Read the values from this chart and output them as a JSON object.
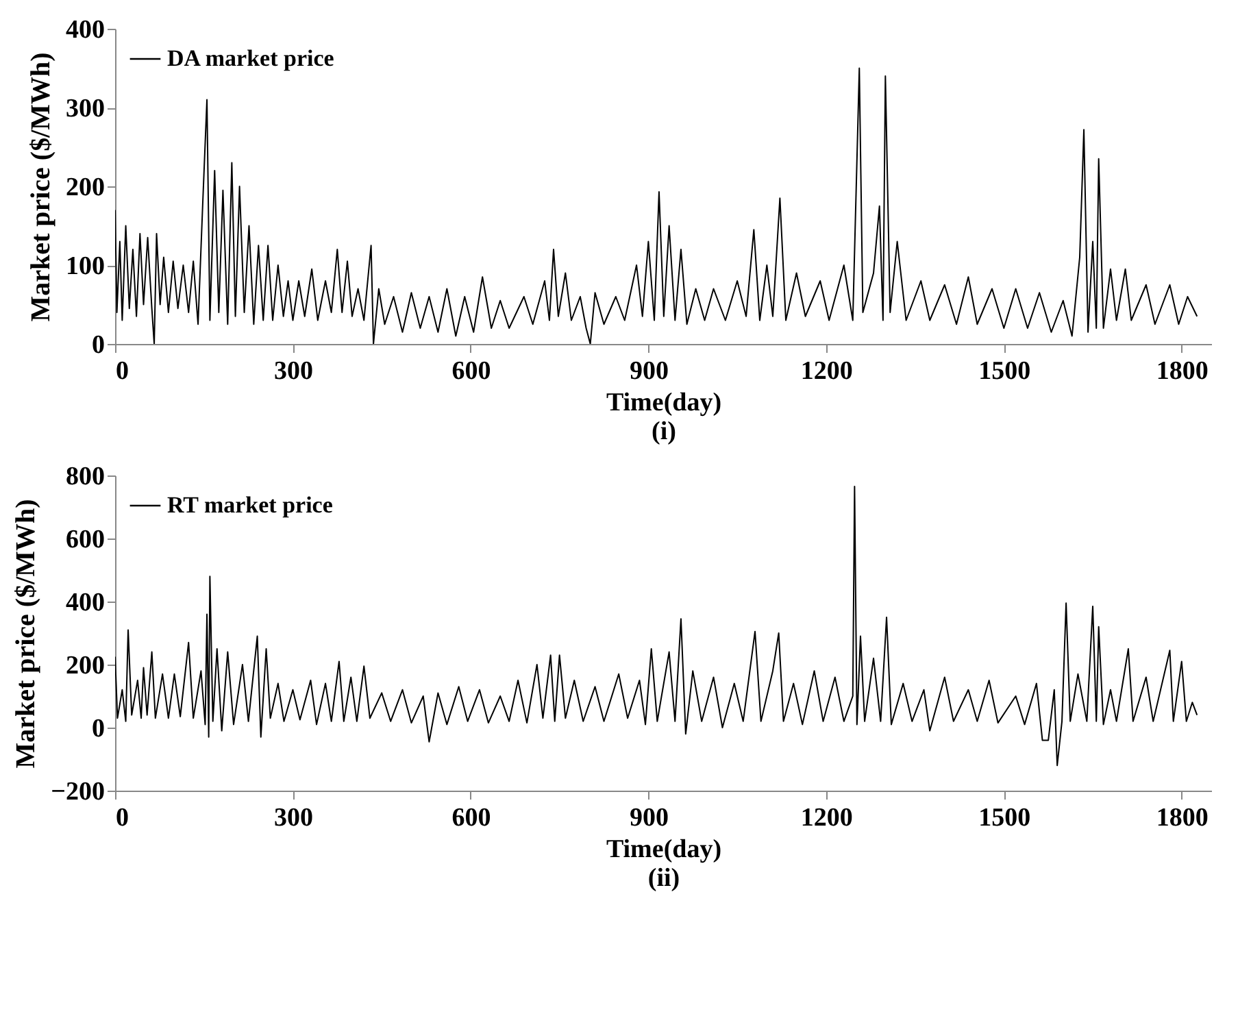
{
  "chart_data": [
    {
      "type": "line",
      "xlabel": "Time(day)",
      "ylabel": "Market price ($/MWh)",
      "annotations": [
        "(i)"
      ],
      "legend": "top left",
      "grid": false,
      "xlim": [
        0,
        1850
      ],
      "xticks": [
        0,
        300,
        600,
        900,
        1200,
        1500,
        1800
      ],
      "ylim": [
        0,
        400
      ],
      "yticks": [
        0,
        100,
        200,
        300,
        400
      ],
      "x": [
        0,
        3,
        8,
        12,
        18,
        24,
        30,
        36,
        42,
        48,
        55,
        62,
        66,
        70,
        76,
        82,
        90,
        98,
        106,
        115,
        124,
        132,
        140,
        148,
        155,
        160,
        168,
        175,
        182,
        190,
        197,
        203,
        210,
        218,
        226,
        234,
        242,
        250,
        258,
        266,
        275,
        284,
        292,
        300,
        310,
        320,
        332,
        342,
        355,
        365,
        375,
        383,
        392,
        400,
        410,
        420,
        432,
        436,
        445,
        455,
        470,
        485,
        500,
        515,
        530,
        545,
        560,
        575,
        590,
        605,
        620,
        635,
        650,
        665,
        690,
        705,
        725,
        733,
        740,
        748,
        760,
        770,
        785,
        795,
        802,
        810,
        825,
        845,
        860,
        880,
        890,
        900,
        910,
        918,
        926,
        935,
        945,
        955,
        965,
        980,
        995,
        1010,
        1030,
        1050,
        1065,
        1078,
        1088,
        1100,
        1110,
        1122,
        1132,
        1150,
        1165,
        1190,
        1205,
        1230,
        1245,
        1256,
        1262,
        1280,
        1290,
        1296,
        1300,
        1308,
        1320,
        1335,
        1360,
        1375,
        1400,
        1420,
        1440,
        1455,
        1480,
        1500,
        1520,
        1540,
        1560,
        1580,
        1600,
        1615,
        1628,
        1635,
        1642,
        1650,
        1656,
        1660,
        1668,
        1680,
        1690,
        1705,
        1715,
        1740,
        1755,
        1780,
        1795,
        1810,
        1826
      ],
      "series": [
        {
          "name": "DA market price",
          "color": "#000000",
          "values": [
            170,
            40,
            130,
            30,
            150,
            45,
            120,
            35,
            140,
            50,
            135,
            45,
            0,
            140,
            50,
            110,
            40,
            105,
            45,
            100,
            40,
            105,
            25,
            180,
            310,
            30,
            220,
            40,
            195,
            25,
            230,
            35,
            200,
            40,
            150,
            25,
            125,
            30,
            125,
            30,
            100,
            35,
            80,
            30,
            80,
            35,
            95,
            30,
            80,
            40,
            120,
            40,
            105,
            35,
            70,
            30,
            125,
            0,
            70,
            25,
            60,
            15,
            65,
            20,
            60,
            15,
            70,
            10,
            60,
            15,
            85,
            20,
            55,
            20,
            60,
            25,
            80,
            30,
            120,
            35,
            90,
            30,
            60,
            20,
            0,
            65,
            25,
            60,
            30,
            100,
            35,
            130,
            30,
            193,
            35,
            150,
            30,
            120,
            25,
            70,
            30,
            70,
            30,
            80,
            35,
            145,
            30,
            100,
            35,
            185,
            30,
            90,
            35,
            80,
            30,
            100,
            30,
            350,
            40,
            90,
            175,
            30,
            340,
            40,
            130,
            30,
            80,
            30,
            75,
            25,
            85,
            25,
            70,
            20,
            70,
            20,
            65,
            15,
            55,
            10,
            110,
            272,
            15,
            130,
            20,
            235,
            20,
            95,
            30,
            95,
            30,
            75,
            25,
            75,
            25,
            60,
            35
          ]
        }
      ]
    },
    {
      "type": "line",
      "xlabel": "Time(day)",
      "ylabel": "Market price ($/MWh)",
      "annotations": [
        "(ii)"
      ],
      "legend": "top left",
      "grid": false,
      "xlim": [
        0,
        1850
      ],
      "xticks": [
        0,
        300,
        600,
        900,
        1200,
        1500,
        1800
      ],
      "ylim": [
        -200,
        800
      ],
      "yticks": [
        -200,
        0,
        200,
        400,
        600,
        800
      ],
      "x": [
        0,
        4,
        12,
        18,
        22,
        28,
        38,
        44,
        48,
        54,
        62,
        68,
        80,
        90,
        100,
        110,
        124,
        132,
        145,
        152,
        155,
        158,
        160,
        165,
        172,
        180,
        190,
        200,
        215,
        225,
        240,
        246,
        255,
        262,
        275,
        285,
        300,
        312,
        330,
        340,
        355,
        365,
        378,
        386,
        398,
        408,
        420,
        430,
        450,
        465,
        485,
        500,
        520,
        530,
        545,
        560,
        580,
        595,
        615,
        630,
        650,
        665,
        680,
        695,
        712,
        722,
        735,
        742,
        750,
        760,
        775,
        790,
        810,
        825,
        850,
        865,
        885,
        895,
        905,
        915,
        935,
        945,
        955,
        963,
        975,
        990,
        1010,
        1025,
        1045,
        1060,
        1080,
        1090,
        1110,
        1120,
        1128,
        1145,
        1160,
        1180,
        1195,
        1215,
        1230,
        1245,
        1248,
        1252,
        1258,
        1265,
        1280,
        1292,
        1302,
        1310,
        1330,
        1345,
        1365,
        1375,
        1400,
        1415,
        1440,
        1455,
        1475,
        1490,
        1520,
        1535,
        1555,
        1565,
        1575,
        1585,
        1590,
        1598,
        1605,
        1612,
        1625,
        1640,
        1650,
        1656,
        1660,
        1668,
        1680,
        1690,
        1710,
        1718,
        1740,
        1752,
        1780,
        1786,
        1800,
        1808,
        1818,
        1826
      ],
      "series": [
        {
          "name": "RT market price",
          "color": "#000000",
          "values": [
            225,
            30,
            120,
            20,
            310,
            40,
            150,
            30,
            190,
            40,
            240,
            30,
            170,
            30,
            170,
            35,
            270,
            30,
            180,
            10,
            360,
            -30,
            480,
            20,
            250,
            -10,
            240,
            10,
            200,
            20,
            290,
            -30,
            250,
            30,
            140,
            20,
            120,
            25,
            150,
            10,
            140,
            20,
            210,
            20,
            160,
            20,
            195,
            30,
            110,
            20,
            120,
            15,
            100,
            -45,
            110,
            10,
            130,
            20,
            120,
            15,
            100,
            20,
            150,
            15,
            200,
            30,
            230,
            20,
            230,
            30,
            150,
            20,
            130,
            20,
            170,
            30,
            150,
            10,
            250,
            20,
            240,
            20,
            345,
            -20,
            180,
            20,
            160,
            0,
            140,
            20,
            305,
            20,
            180,
            300,
            20,
            140,
            10,
            180,
            20,
            160,
            20,
            100,
            765,
            10,
            290,
            20,
            220,
            20,
            350,
            10,
            140,
            20,
            120,
            -10,
            160,
            20,
            120,
            20,
            150,
            15,
            100,
            10,
            140,
            -40,
            -40,
            120,
            -120,
            20,
            395,
            20,
            170,
            20,
            385,
            20,
            320,
            10,
            120,
            20,
            250,
            20,
            160,
            20,
            245,
            20,
            210,
            20,
            80,
            40
          ]
        }
      ]
    }
  ]
}
